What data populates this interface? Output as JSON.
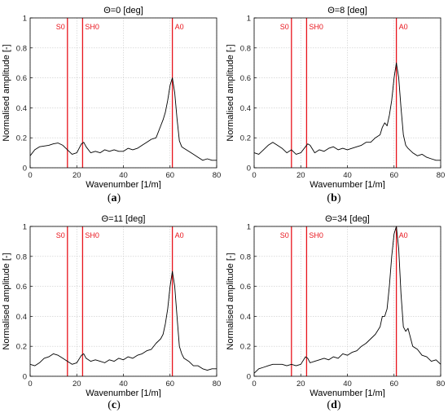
{
  "chart_data": [
    {
      "type": "line",
      "panel_label": "a",
      "title": "Θ=0 [deg]",
      "xlabel": "Wavenumber [1/m]",
      "ylabel": "Normalised amplitude [-]",
      "xlim": [
        0,
        80
      ],
      "ylim": [
        0,
        1
      ],
      "xticks": [
        "0",
        "20",
        "40",
        "60",
        "80"
      ],
      "yticks": [
        "0",
        "0.2",
        "0.4",
        "0.6",
        "0.8",
        "1"
      ],
      "grid": true,
      "markers": [
        {
          "label": "S0",
          "x": 16,
          "color": "#e8141c"
        },
        {
          "label": "SH0",
          "x": 22.5,
          "color": "#e8141c"
        },
        {
          "label": "A0",
          "x": 61,
          "color": "#e8141c"
        }
      ],
      "series": [
        {
          "color": "#000000",
          "x": [
            0,
            2,
            4,
            6,
            8,
            10,
            12,
            14,
            16,
            18,
            20,
            22,
            23,
            24,
            26,
            28,
            30,
            32,
            34,
            36,
            38,
            40,
            42,
            44,
            46,
            48,
            50,
            52,
            54,
            56,
            57,
            58,
            59,
            60,
            61,
            62,
            63,
            64,
            65,
            66,
            68,
            70,
            72,
            74,
            76,
            78,
            80
          ],
          "y": [
            0.08,
            0.12,
            0.14,
            0.145,
            0.15,
            0.16,
            0.165,
            0.15,
            0.12,
            0.09,
            0.1,
            0.16,
            0.17,
            0.14,
            0.1,
            0.11,
            0.1,
            0.12,
            0.11,
            0.12,
            0.11,
            0.11,
            0.13,
            0.12,
            0.13,
            0.15,
            0.17,
            0.19,
            0.2,
            0.28,
            0.32,
            0.37,
            0.45,
            0.55,
            0.6,
            0.5,
            0.33,
            0.18,
            0.14,
            0.13,
            0.11,
            0.09,
            0.07,
            0.05,
            0.06,
            0.05,
            0.05
          ]
        }
      ]
    },
    {
      "type": "line",
      "panel_label": "b",
      "title": "Θ=8 [deg]",
      "xlabel": "Wavenumber [1/m]",
      "ylabel": "Normalised amplitude [-]",
      "xlim": [
        0,
        80
      ],
      "ylim": [
        0,
        1
      ],
      "xticks": [
        "0",
        "20",
        "40",
        "60",
        "80"
      ],
      "yticks": [
        "0",
        "0.2",
        "0.4",
        "0.6",
        "0.8",
        "1"
      ],
      "grid": true,
      "markers": [
        {
          "label": "S0",
          "x": 16,
          "color": "#e8141c"
        },
        {
          "label": "SH0",
          "x": 22.5,
          "color": "#e8141c"
        },
        {
          "label": "A0",
          "x": 61,
          "color": "#e8141c"
        }
      ],
      "series": [
        {
          "color": "#000000",
          "x": [
            0,
            2,
            4,
            6,
            8,
            10,
            12,
            14,
            16,
            18,
            20,
            22,
            23,
            24,
            26,
            28,
            30,
            32,
            34,
            36,
            38,
            40,
            42,
            44,
            46,
            48,
            50,
            52,
            54,
            55,
            56,
            57,
            58,
            59,
            60,
            61,
            62,
            63,
            64,
            65,
            66,
            68,
            70,
            72,
            74,
            76,
            78,
            80
          ],
          "y": [
            0.1,
            0.09,
            0.12,
            0.15,
            0.17,
            0.15,
            0.13,
            0.1,
            0.12,
            0.09,
            0.1,
            0.14,
            0.16,
            0.15,
            0.1,
            0.12,
            0.11,
            0.13,
            0.14,
            0.12,
            0.13,
            0.12,
            0.13,
            0.14,
            0.15,
            0.17,
            0.17,
            0.2,
            0.22,
            0.27,
            0.3,
            0.28,
            0.35,
            0.45,
            0.6,
            0.7,
            0.6,
            0.4,
            0.22,
            0.15,
            0.13,
            0.1,
            0.08,
            0.09,
            0.07,
            0.06,
            0.05,
            0.05
          ]
        }
      ]
    },
    {
      "type": "line",
      "panel_label": "c",
      "title": "Θ=11 [deg]",
      "xlabel": "Wavenumber [1/m]",
      "ylabel": "Normalised amplitude [-]",
      "xlim": [
        0,
        80
      ],
      "ylim": [
        0,
        1
      ],
      "xticks": [
        "0",
        "20",
        "40",
        "60",
        "80"
      ],
      "yticks": [
        "0",
        "0.2",
        "0.4",
        "0.6",
        "0.8",
        "1"
      ],
      "grid": true,
      "markers": [
        {
          "label": "S0",
          "x": 16,
          "color": "#e8141c"
        },
        {
          "label": "SH0",
          "x": 22.5,
          "color": "#e8141c"
        },
        {
          "label": "A0",
          "x": 61,
          "color": "#e8141c"
        }
      ],
      "series": [
        {
          "color": "#000000",
          "x": [
            0,
            2,
            4,
            6,
            8,
            10,
            12,
            14,
            16,
            18,
            20,
            22,
            23,
            24,
            26,
            28,
            30,
            32,
            34,
            36,
            38,
            40,
            42,
            44,
            46,
            48,
            50,
            52,
            54,
            56,
            57,
            58,
            59,
            60,
            61,
            62,
            63,
            64,
            65,
            66,
            68,
            70,
            72,
            74,
            76,
            78,
            80
          ],
          "y": [
            0.08,
            0.07,
            0.09,
            0.12,
            0.13,
            0.15,
            0.14,
            0.12,
            0.1,
            0.08,
            0.09,
            0.14,
            0.15,
            0.12,
            0.1,
            0.11,
            0.1,
            0.09,
            0.11,
            0.1,
            0.12,
            0.11,
            0.13,
            0.12,
            0.14,
            0.15,
            0.17,
            0.18,
            0.22,
            0.25,
            0.28,
            0.35,
            0.45,
            0.6,
            0.7,
            0.6,
            0.4,
            0.2,
            0.15,
            0.12,
            0.1,
            0.07,
            0.07,
            0.05,
            0.04,
            0.05,
            0.05
          ]
        }
      ]
    },
    {
      "type": "line",
      "panel_label": "d",
      "title": "Θ=34 [deg]",
      "xlabel": "Wavenumber [1/m]",
      "ylabel": "Normalised amplitude [-]",
      "xlim": [
        0,
        80
      ],
      "ylim": [
        0,
        1
      ],
      "xticks": [
        "0",
        "20",
        "40",
        "60",
        "80"
      ],
      "yticks": [
        "0",
        "0.2",
        "0.4",
        "0.6",
        "0.8",
        "1"
      ],
      "grid": true,
      "markers": [
        {
          "label": "S0",
          "x": 16,
          "color": "#e8141c"
        },
        {
          "label": "SH0",
          "x": 22.5,
          "color": "#e8141c"
        },
        {
          "label": "A0",
          "x": 61,
          "color": "#e8141c"
        }
      ],
      "series": [
        {
          "color": "#000000",
          "x": [
            0,
            2,
            4,
            6,
            8,
            10,
            12,
            14,
            16,
            18,
            20,
            22,
            23,
            24,
            26,
            28,
            30,
            32,
            34,
            36,
            38,
            40,
            42,
            44,
            46,
            48,
            50,
            52,
            54,
            55,
            56,
            57,
            58,
            59,
            60,
            61,
            62,
            63,
            64,
            65,
            66,
            68,
            70,
            72,
            74,
            76,
            78,
            80
          ],
          "y": [
            0.02,
            0.05,
            0.06,
            0.07,
            0.08,
            0.08,
            0.08,
            0.07,
            0.08,
            0.07,
            0.08,
            0.13,
            0.12,
            0.09,
            0.1,
            0.11,
            0.12,
            0.11,
            0.13,
            0.12,
            0.15,
            0.14,
            0.16,
            0.17,
            0.2,
            0.22,
            0.25,
            0.28,
            0.33,
            0.4,
            0.4,
            0.45,
            0.6,
            0.8,
            0.95,
            1.0,
            0.85,
            0.55,
            0.33,
            0.3,
            0.32,
            0.2,
            0.18,
            0.14,
            0.13,
            0.1,
            0.11,
            0.08
          ]
        }
      ]
    }
  ]
}
